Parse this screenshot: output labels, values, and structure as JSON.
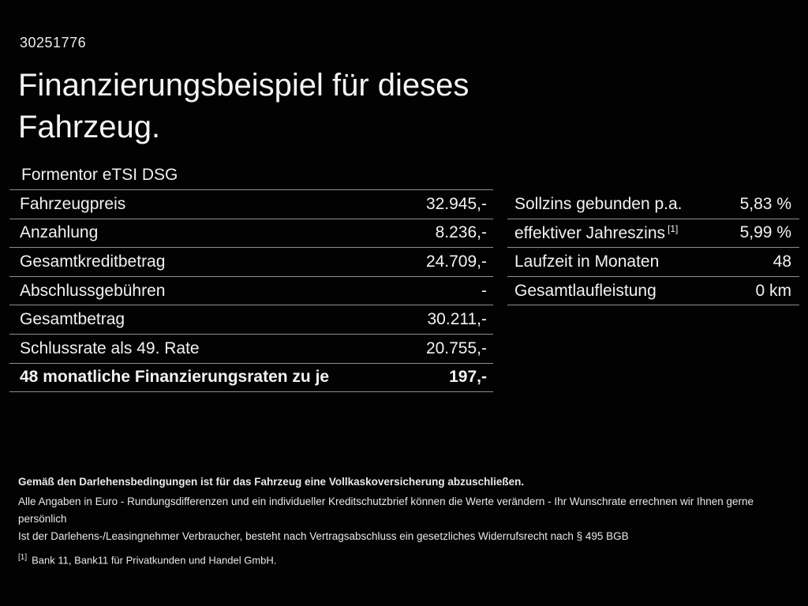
{
  "page": {
    "id_number": "30251776",
    "title": "Finanzierungsbeispiel für dieses Fahrzeug.",
    "model": "Formentor eTSI DSG"
  },
  "left_table": {
    "rows": [
      {
        "label": "Fahrzeugpreis",
        "value": "32.945,-"
      },
      {
        "label": "Anzahlung",
        "value": "8.236,-"
      },
      {
        "label": "Gesamtkreditbetrag",
        "value": "24.709,-"
      },
      {
        "label": "Abschlussgebühren",
        "value": "-"
      },
      {
        "label": "Gesamtbetrag",
        "value": "30.211,-"
      },
      {
        "label": "Schlussrate als 49. Rate",
        "value": "20.755,-"
      },
      {
        "label": "48 monatliche Finanzierungsraten zu je",
        "value": "197,-"
      }
    ]
  },
  "right_table": {
    "rows": [
      {
        "label": "Sollzins gebunden p.a.",
        "marker": "",
        "value": "5,83 %"
      },
      {
        "label": "effektiver Jahreszins",
        "marker": "[1]",
        "value": "5,99 %"
      },
      {
        "label": "Laufzeit in Monaten",
        "marker": "",
        "value": "48"
      },
      {
        "label": "Gesamtlaufleistung",
        "marker": "",
        "value": "0 km"
      }
    ]
  },
  "footer": {
    "bold_note": "Gemäß den Darlehensbedingungen ist für das Fahrzeug eine Vollkaskoversicherung abzuschließen.",
    "line1": "Alle Angaben in Euro - Rundungsdifferenzen und ein individueller Kreditschutzbrief können die Werte verändern - Ihr Wunschrate errechnen wir Ihnen gerne persönlich",
    "line2": "Ist der Darlehens-/Leasingnehmer Verbraucher, besteht nach Vertragsabschluss ein gesetzliches Widerrufsrecht nach § 495 BGB",
    "footnote_marker": "[1]",
    "footnote_text": "Bank 11, Bank11 für Privatkunden und Handel GmbH."
  },
  "colors": {
    "background": "#020202",
    "text": "#f2f2f2",
    "divider": "#8f8f8f"
  }
}
